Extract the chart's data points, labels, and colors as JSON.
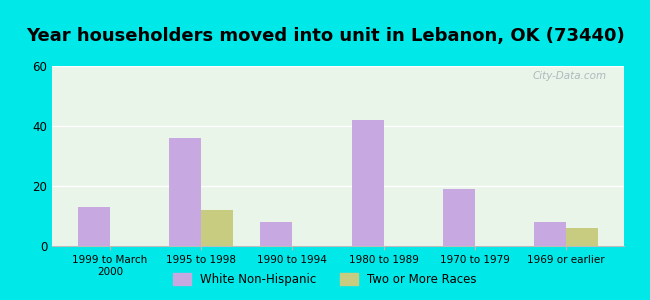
{
  "title": "Year householders moved into unit in Lebanon, OK (73440)",
  "categories": [
    "1999 to March\n2000",
    "1995 to 1998",
    "1990 to 1994",
    "1980 to 1989",
    "1970 to 1979",
    "1969 or earlier"
  ],
  "white_non_hispanic": [
    13,
    36,
    8,
    42,
    19,
    8
  ],
  "two_or_more_races": [
    0,
    12,
    0,
    0,
    0,
    6
  ],
  "bar_color_white": "#c8a8e0",
  "bar_color_two": "#c8cc80",
  "background_outer": "#00e8e8",
  "background_inner": "#e8f5e8",
  "ylim": [
    0,
    60
  ],
  "yticks": [
    0,
    20,
    40,
    60
  ],
  "legend_label_white": "White Non-Hispanic",
  "legend_label_two": "Two or More Races",
  "title_fontsize": 13,
  "bar_width": 0.35
}
